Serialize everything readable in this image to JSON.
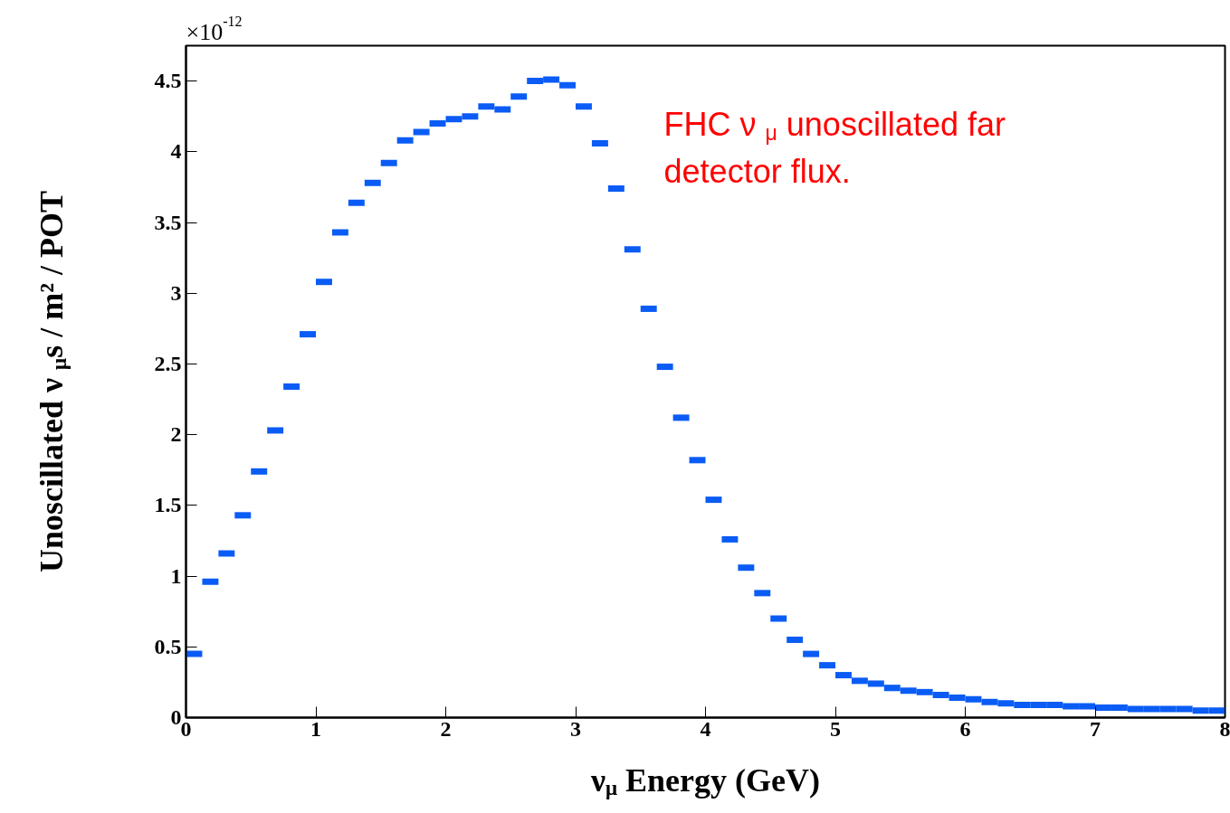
{
  "chart_data": {
    "type": "scatter",
    "xlabel": "ν$_{μ}$ Energy (GeV)",
    "ylabel": "Unoscillated  ν$_{μ}$s / m² / POT",
    "annotations": [
      "×10$^{-12}$",
      "FHC ν $_{μ}$ unoscillated far\ndetector flux."
    ],
    "color": "#0a5cf5",
    "x": [
      0.0625,
      0.1875,
      0.3125,
      0.4375,
      0.5625,
      0.6875,
      0.8125,
      0.9375,
      1.0625,
      1.1875,
      1.3125,
      1.4375,
      1.5625,
      1.6875,
      1.8125,
      1.9375,
      2.0625,
      2.1875,
      2.3125,
      2.4375,
      2.5625,
      2.6875,
      2.8125,
      2.9375,
      3.0625,
      3.1875,
      3.3125,
      3.4375,
      3.5625,
      3.6875,
      3.8125,
      3.9375,
      4.0625,
      4.1875,
      4.3125,
      4.4375,
      4.5625,
      4.6875,
      4.8125,
      4.9375,
      5.0625,
      5.1875,
      5.3125,
      5.4375,
      5.5625,
      5.6875,
      5.8125,
      5.9375,
      6.0625,
      6.1875,
      6.3125,
      6.4375,
      6.5625,
      6.6875,
      6.8125,
      6.9375,
      7.0625,
      7.1875,
      7.3125,
      7.4375,
      7.5625,
      7.6875,
      7.8125,
      7.9375
    ],
    "values": [
      0.45,
      0.96,
      1.16,
      1.43,
      1.74,
      2.03,
      2.34,
      2.71,
      3.08,
      3.43,
      3.64,
      3.78,
      3.92,
      4.08,
      4.14,
      4.2,
      4.23,
      4.25,
      4.32,
      4.3,
      4.39,
      4.5,
      4.51,
      4.47,
      4.32,
      4.06,
      3.74,
      3.31,
      2.89,
      2.48,
      2.12,
      1.82,
      1.54,
      1.26,
      1.06,
      0.88,
      0.7,
      0.55,
      0.45,
      0.37,
      0.3,
      0.26,
      0.24,
      0.21,
      0.19,
      0.18,
      0.16,
      0.14,
      0.13,
      0.11,
      0.1,
      0.09,
      0.09,
      0.09,
      0.08,
      0.08,
      0.07,
      0.07,
      0.06,
      0.06,
      0.06,
      0.06,
      0.05,
      0.05
    ],
    "xlim": [
      0,
      8
    ],
    "ylim": [
      0,
      4.75
    ],
    "xticks": [
      0,
      1,
      2,
      3,
      4,
      5,
      6,
      7,
      8
    ],
    "yticks": [
      0,
      0.5,
      1,
      1.5,
      2,
      2.5,
      3,
      3.5,
      4,
      4.5
    ],
    "grid": false
  }
}
